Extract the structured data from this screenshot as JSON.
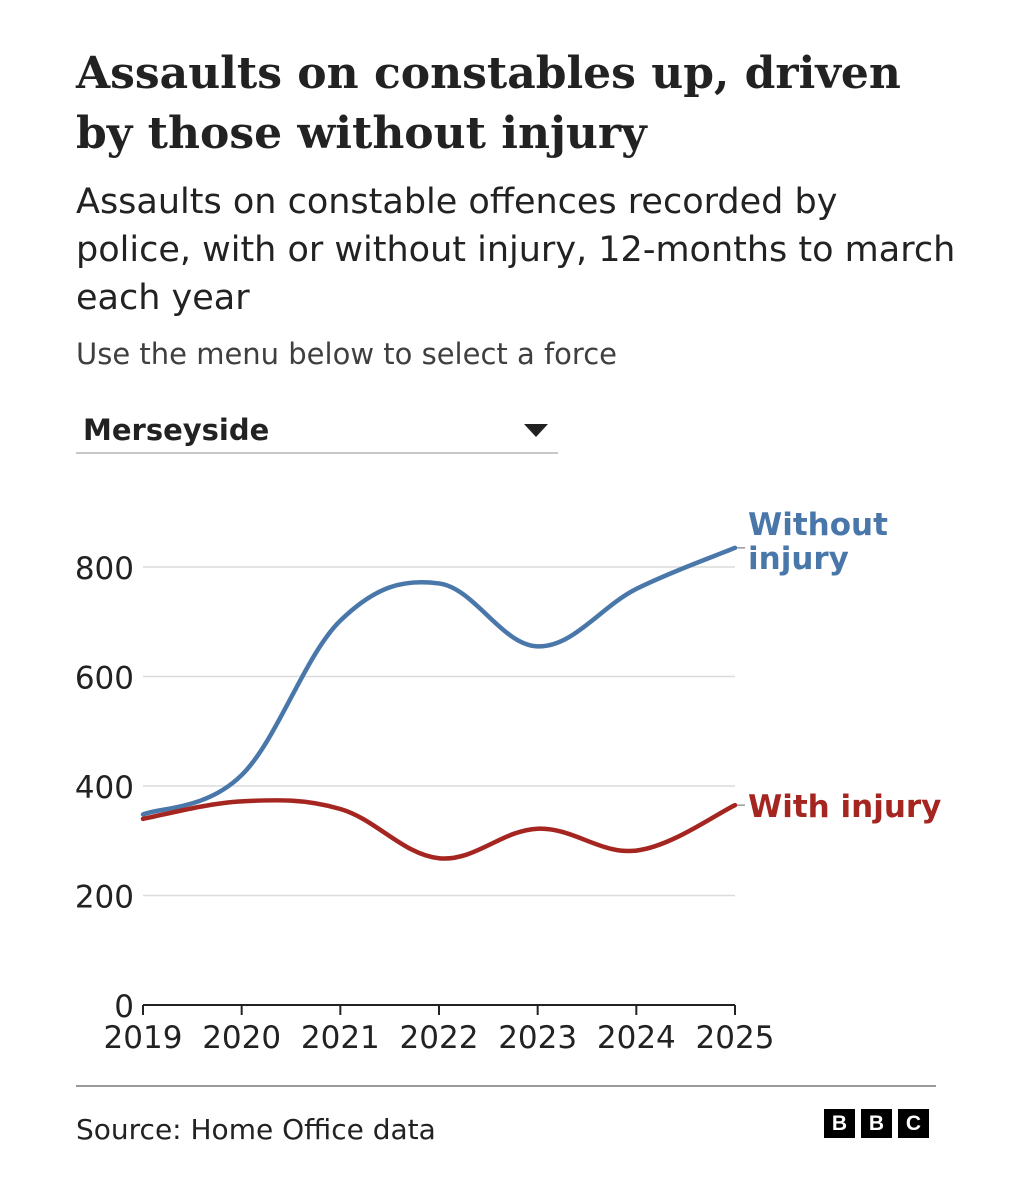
{
  "header": {
    "title": "Assaults on constables up, driven by those without injury",
    "subtitle": "Assaults on constable offences recorded by police, with or without injury, 12-months to march each year",
    "instruction": "Use the menu below to select a force"
  },
  "force_select": {
    "value": "Merseyside",
    "icon": "caret-down-icon"
  },
  "chart_data": {
    "type": "line",
    "title": "",
    "xlabel": "",
    "ylabel": "",
    "x": [
      2019,
      2020,
      2021,
      2022,
      2023,
      2024,
      2025
    ],
    "xlim": [
      2019,
      2025
    ],
    "ylim": [
      0,
      900
    ],
    "yticks": [
      0,
      200,
      400,
      600,
      800
    ],
    "grid": true,
    "series": [
      {
        "name": "Without injury",
        "label_lines": [
          "Without",
          "injury"
        ],
        "color": "#4a77aa",
        "values": [
          348,
          420,
          702,
          770,
          655,
          760,
          835
        ]
      },
      {
        "name": "With injury",
        "label_lines": [
          "With injury"
        ],
        "color": "#a52620",
        "values": [
          340,
          372,
          358,
          268,
          322,
          282,
          365
        ]
      }
    ]
  },
  "footer": {
    "source": "Source: Home Office data",
    "logo_letters": [
      "B",
      "B",
      "C"
    ]
  }
}
